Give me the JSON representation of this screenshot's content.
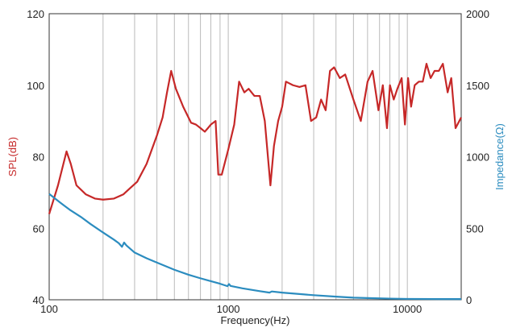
{
  "chart_data": {
    "type": "line",
    "xlabel": "Frequency(Hz)",
    "ylabel_left": "SPL(dB)",
    "ylabel_right": "Impedance(Ω)",
    "x_scale": "log",
    "xlim": [
      100,
      20000
    ],
    "ylim_left": [
      40,
      120
    ],
    "ylim_right": [
      0,
      2000
    ],
    "x_tick_labels": [
      "100",
      "1000",
      "10000"
    ],
    "x_tick_values": [
      100,
      1000,
      10000
    ],
    "y_left_tick_labels": [
      "40",
      "60",
      "80",
      "100",
      "120"
    ],
    "y_left_tick_values": [
      40,
      60,
      80,
      100,
      120
    ],
    "y_right_tick_labels": [
      "0",
      "500",
      "1000",
      "1500",
      "2000"
    ],
    "y_right_tick_values": [
      0,
      500,
      1000,
      1500,
      2000
    ],
    "grid": "vertical, log decades",
    "colors": {
      "spl": "#c62828",
      "impedance": "#2b8cbf",
      "left_axis_label": "#c62828",
      "right_axis_label": "#2b8cbf"
    },
    "series": [
      {
        "key": "spl",
        "axis": "left",
        "points": [
          [
            100,
            64
          ],
          [
            112,
            72
          ],
          [
            125,
            81.5
          ],
          [
            132,
            78
          ],
          [
            142,
            72
          ],
          [
            160,
            69.5
          ],
          [
            180,
            68.3
          ],
          [
            200,
            68
          ],
          [
            230,
            68.3
          ],
          [
            260,
            69.5
          ],
          [
            280,
            71
          ],
          [
            310,
            73
          ],
          [
            350,
            78
          ],
          [
            400,
            86
          ],
          [
            430,
            91
          ],
          [
            455,
            98
          ],
          [
            480,
            104
          ],
          [
            510,
            99
          ],
          [
            560,
            94
          ],
          [
            620,
            89.5
          ],
          [
            660,
            89
          ],
          [
            700,
            88
          ],
          [
            740,
            87
          ],
          [
            770,
            88
          ],
          [
            800,
            89
          ],
          [
            850,
            90
          ],
          [
            880,
            75
          ],
          [
            920,
            75
          ],
          [
            1000,
            82
          ],
          [
            1080,
            89
          ],
          [
            1150,
            101
          ],
          [
            1230,
            98
          ],
          [
            1300,
            99
          ],
          [
            1400,
            97
          ],
          [
            1500,
            97
          ],
          [
            1600,
            90
          ],
          [
            1720,
            72
          ],
          [
            1800,
            83
          ],
          [
            1900,
            90
          ],
          [
            2000,
            94
          ],
          [
            2100,
            101
          ],
          [
            2300,
            100
          ],
          [
            2500,
            99.5
          ],
          [
            2700,
            100
          ],
          [
            2900,
            90
          ],
          [
            3100,
            91
          ],
          [
            3300,
            96
          ],
          [
            3500,
            93
          ],
          [
            3700,
            104
          ],
          [
            3900,
            105
          ],
          [
            4200,
            102
          ],
          [
            4500,
            103
          ],
          [
            5000,
            96
          ],
          [
            5500,
            90
          ],
          [
            6000,
            101
          ],
          [
            6400,
            104
          ],
          [
            6900,
            93
          ],
          [
            7300,
            100
          ],
          [
            7700,
            88
          ],
          [
            8000,
            100
          ],
          [
            8400,
            96
          ],
          [
            8800,
            99
          ],
          [
            9300,
            102
          ],
          [
            9700,
            89
          ],
          [
            10100,
            102
          ],
          [
            10500,
            94
          ],
          [
            11000,
            100
          ],
          [
            11600,
            101
          ],
          [
            12200,
            101
          ],
          [
            12800,
            106
          ],
          [
            13500,
            102
          ],
          [
            14200,
            104
          ],
          [
            15000,
            104
          ],
          [
            15800,
            106
          ],
          [
            16800,
            98
          ],
          [
            17600,
            102
          ],
          [
            18600,
            88
          ],
          [
            20000,
            91
          ]
        ]
      },
      {
        "key": "impedance",
        "axis": "right",
        "points": [
          [
            100,
            740
          ],
          [
            115,
            680
          ],
          [
            130,
            630
          ],
          [
            150,
            580
          ],
          [
            170,
            530
          ],
          [
            200,
            470
          ],
          [
            230,
            420
          ],
          [
            245,
            395
          ],
          [
            255,
            370
          ],
          [
            262,
            400
          ],
          [
            270,
            380
          ],
          [
            300,
            330
          ],
          [
            350,
            290
          ],
          [
            400,
            260
          ],
          [
            500,
            210
          ],
          [
            600,
            175
          ],
          [
            700,
            150
          ],
          [
            800,
            130
          ],
          [
            900,
            112
          ],
          [
            990,
            95
          ],
          [
            1010,
            110
          ],
          [
            1030,
            97
          ],
          [
            1200,
            80
          ],
          [
            1500,
            60
          ],
          [
            1700,
            50
          ],
          [
            1750,
            58
          ],
          [
            2000,
            50
          ],
          [
            2500,
            40
          ],
          [
            3000,
            32
          ],
          [
            4000,
            22
          ],
          [
            5000,
            15
          ],
          [
            6000,
            12
          ],
          [
            8000,
            8
          ],
          [
            10000,
            6
          ],
          [
            15000,
            5
          ],
          [
            20000,
            5
          ]
        ]
      }
    ]
  }
}
